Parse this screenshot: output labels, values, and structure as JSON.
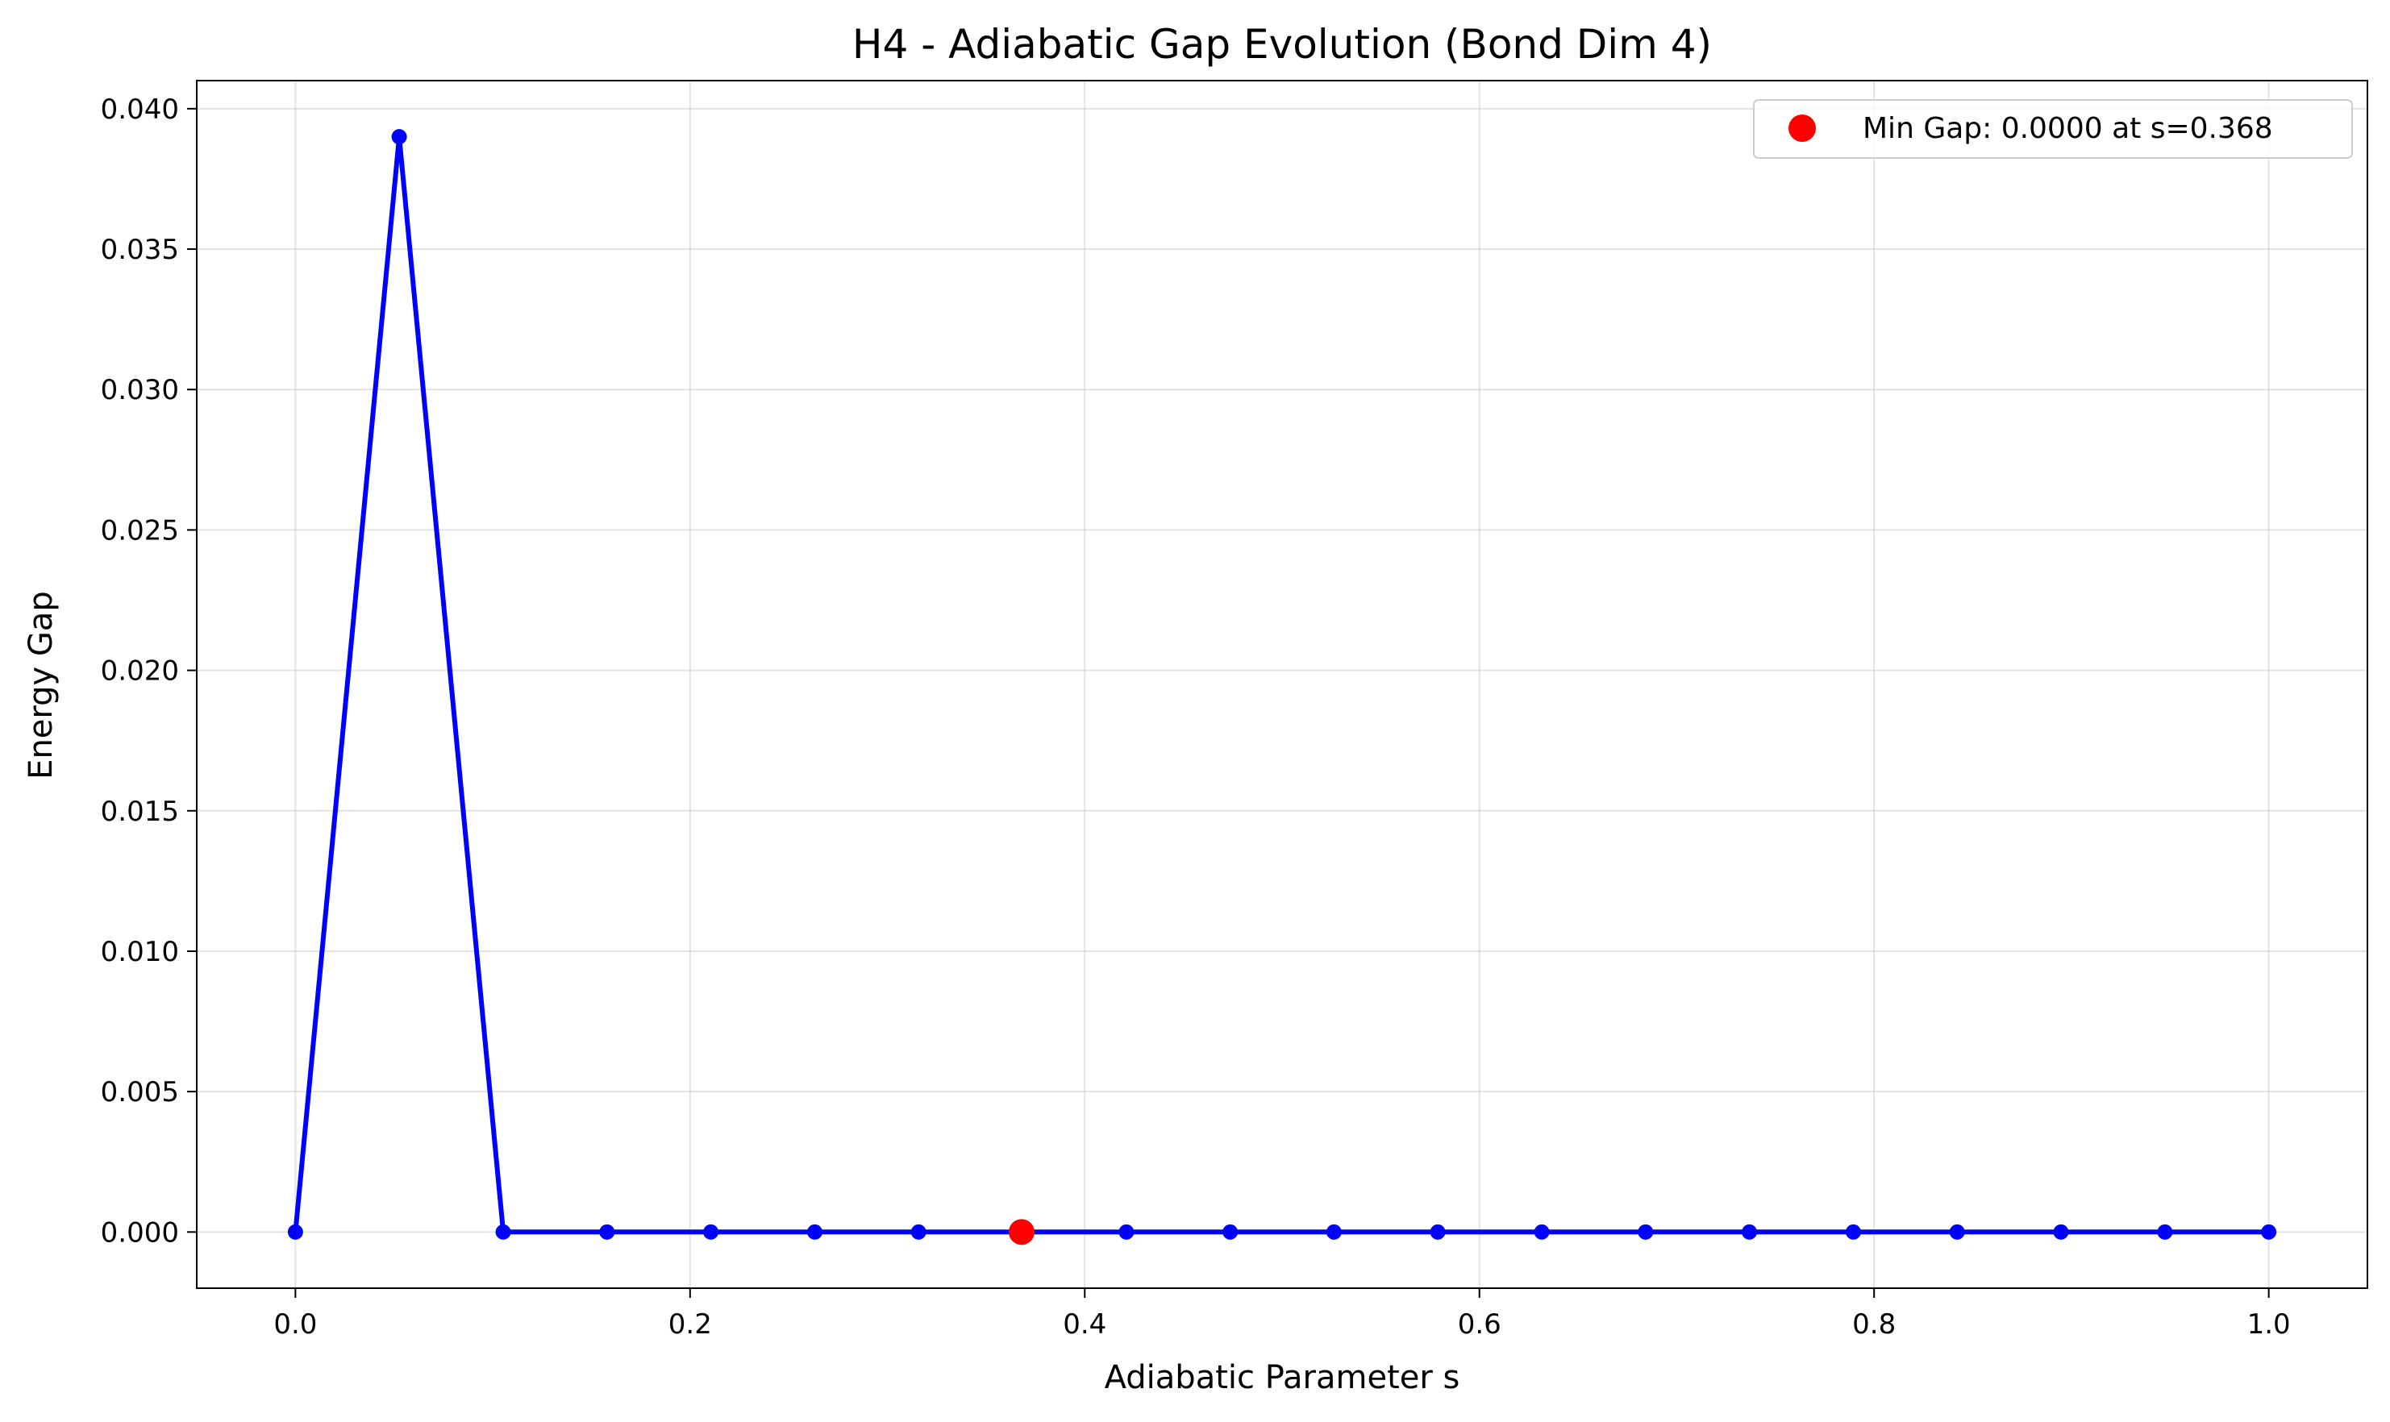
{
  "chart_data": {
    "type": "line",
    "title": "H4 - Adiabatic Gap Evolution (Bond Dim 4)",
    "xlabel": "Adiabatic Parameter s",
    "ylabel": "Energy Gap",
    "xlim": [
      -0.05,
      1.05
    ],
    "ylim": [
      -0.002,
      0.041
    ],
    "xticks": [
      0.0,
      0.2,
      0.4,
      0.6,
      0.8,
      1.0
    ],
    "xtick_labels": [
      "0.0",
      "0.2",
      "0.4",
      "0.6",
      "0.8",
      "1.0"
    ],
    "yticks": [
      0.0,
      0.005,
      0.01,
      0.015,
      0.02,
      0.025,
      0.03,
      0.035,
      0.04
    ],
    "ytick_labels": [
      "0.000",
      "0.005",
      "0.010",
      "0.015",
      "0.020",
      "0.025",
      "0.030",
      "0.035",
      "0.040"
    ],
    "grid": true,
    "legend_position": "top-right",
    "series": [
      {
        "color": "#0000ff",
        "x": [
          0.0,
          0.0526,
          0.1053,
          0.1579,
          0.2105,
          0.2632,
          0.3158,
          0.3684,
          0.4211,
          0.4737,
          0.5263,
          0.5789,
          0.6316,
          0.6842,
          0.7368,
          0.7895,
          0.8421,
          0.8947,
          0.9474,
          1.0
        ],
        "y": [
          0.0,
          0.039,
          0.0,
          0.0,
          0.0,
          0.0,
          0.0,
          0.0,
          0.0,
          0.0,
          0.0,
          0.0,
          0.0,
          0.0,
          0.0,
          0.0,
          0.0,
          0.0,
          0.0,
          0.0
        ]
      }
    ],
    "highlight": {
      "label": "Min Gap: 0.0000 at s=0.368",
      "x": 0.368,
      "y": 0.0,
      "color": "#ff0000"
    }
  }
}
